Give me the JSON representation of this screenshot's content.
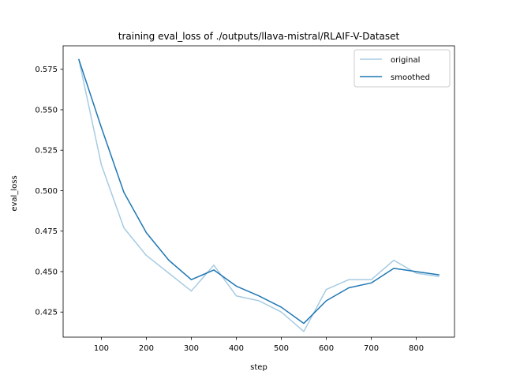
{
  "chart_data": {
    "type": "line",
    "title": "training eval_loss of ./outputs/llava-mistral/RLAIF-V-Dataset",
    "xlabel": "step",
    "ylabel": "eval_loss",
    "xlim": [
      15,
      885
    ],
    "ylim": [
      0.4095,
      0.5895
    ],
    "xticks": [
      100,
      200,
      300,
      400,
      500,
      600,
      700,
      800
    ],
    "yticks": [
      0.425,
      0.45,
      0.475,
      0.5,
      0.525,
      0.55,
      0.575
    ],
    "xtick_labels": [
      "100",
      "200",
      "300",
      "400",
      "500",
      "600",
      "700",
      "800"
    ],
    "ytick_labels": [
      "0.425",
      "0.450",
      "0.475",
      "0.500",
      "0.525",
      "0.550",
      "0.575"
    ],
    "legend": "upper right",
    "grid": false,
    "x": [
      50,
      100,
      150,
      200,
      250,
      300,
      350,
      400,
      450,
      500,
      550,
      600,
      650,
      700,
      750,
      800,
      850
    ],
    "series": [
      {
        "name": "original",
        "color": "#a6cbe3",
        "values": [
          0.581,
          0.516,
          0.477,
          0.46,
          0.449,
          0.438,
          0.454,
          0.435,
          0.432,
          0.425,
          0.413,
          0.439,
          0.445,
          0.445,
          0.457,
          0.449,
          0.447
        ]
      },
      {
        "name": "smoothed",
        "color": "#1f77b4",
        "values": [
          0.581,
          0.539,
          0.499,
          0.474,
          0.457,
          0.445,
          0.451,
          0.441,
          0.435,
          0.428,
          0.418,
          0.432,
          0.44,
          0.443,
          0.452,
          0.45,
          0.448
        ]
      }
    ]
  }
}
